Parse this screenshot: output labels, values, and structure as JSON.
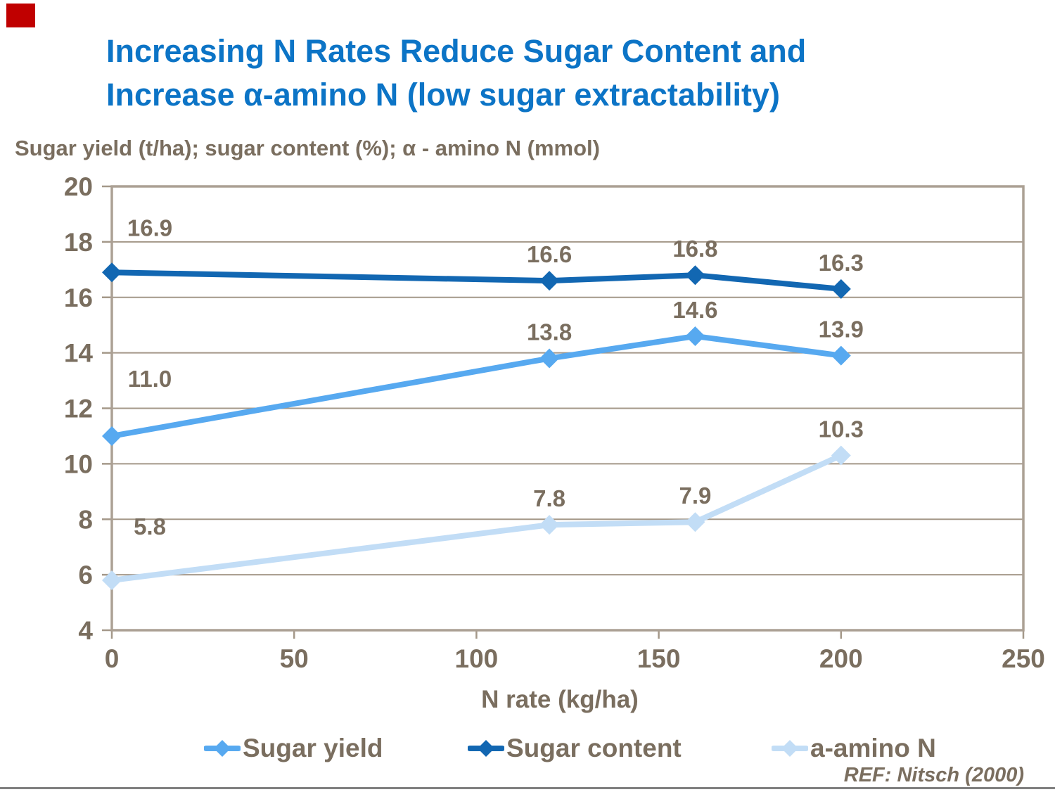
{
  "page": {
    "title_line1": "Increasing N Rates Reduce Sugar Content and",
    "title_line2": "Increase α-amino N (low sugar extractability)",
    "subtitle": "Sugar yield (t/ha); sugar content (%); α - amino N (mmol)",
    "reference": "REF: Nitsch (2000)",
    "colors": {
      "title_blue": "#0C74C6",
      "text_brown": "#7A6E5F",
      "grid": "#A49889",
      "plot_border": "#ABA094",
      "red_marker": "#C00000",
      "bottom_rule": "#7F7F7F"
    }
  },
  "chart_data": {
    "type": "line",
    "title": "",
    "xlabel": "N rate (kg/ha)",
    "ylabel": "Sugar yield (t/ha); sugar content (%); α - amino N (mmol)",
    "x": [
      0,
      120,
      160,
      200
    ],
    "xlim": [
      0,
      250
    ],
    "ylim": [
      4,
      20
    ],
    "xticks": [
      0,
      50,
      100,
      150,
      200,
      250
    ],
    "yticks": [
      4,
      6,
      8,
      10,
      12,
      14,
      16,
      18,
      20
    ],
    "grid": "horizontal",
    "legend_position": "bottom",
    "marker": "diamond",
    "series": [
      {
        "name": "Sugar yield",
        "color": "#57A9F0",
        "values": [
          11.0,
          13.8,
          14.6,
          13.9
        ]
      },
      {
        "name": "Sugar content",
        "color": "#1267B2",
        "values": [
          16.9,
          16.6,
          16.8,
          16.3
        ]
      },
      {
        "name": "a-amino N",
        "color": "#C2DDF6",
        "values": [
          5.8,
          7.8,
          7.9,
          10.3
        ]
      }
    ]
  }
}
